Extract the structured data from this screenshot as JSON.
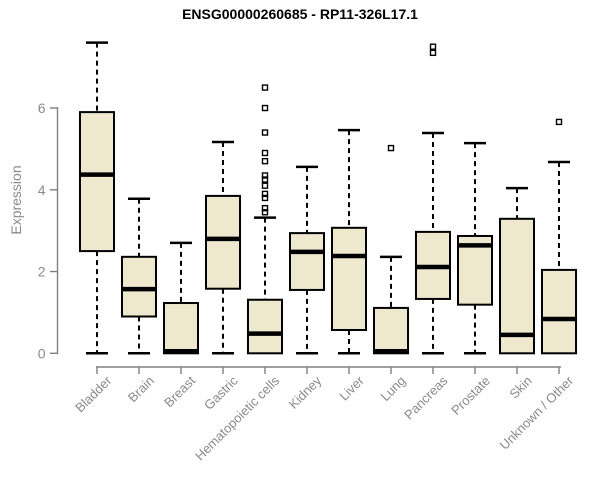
{
  "title": "ENSG00000260685 - RP11-326L17.1",
  "y_axis": {
    "label": "Expression"
  },
  "colors": {
    "box_fill": "#EDE8CE",
    "box_border": "#000000",
    "median": "#000000",
    "whisker": "#000000",
    "axis": "#808080",
    "tick_label": "#8A8A8A",
    "title": "#000000",
    "background": "#FFFFFF"
  },
  "chart_data": {
    "type": "boxplot",
    "title": "ENSG00000260685 - RP11-326L17.1",
    "xlabel": "",
    "ylabel": "Expression",
    "ylim": [
      0,
      7.8
    ],
    "yticks": [
      0,
      2,
      4,
      6
    ],
    "grid": false,
    "legend": "none",
    "categories": [
      "Bladder",
      "Brain",
      "Breast",
      "Gastric",
      "Hematopoietic cells",
      "Kidney",
      "Liver",
      "Lung",
      "Pancreas",
      "Prostate",
      "Skin",
      "Unknown / Other"
    ],
    "series": [
      {
        "name": "Bladder",
        "min": 0,
        "q1": 2.5,
        "median": 4.37,
        "q3": 5.9,
        "max": 7.6,
        "outliers": []
      },
      {
        "name": "Brain",
        "min": 0,
        "q1": 0.9,
        "median": 1.57,
        "q3": 2.36,
        "max": 3.78,
        "outliers": []
      },
      {
        "name": "Breast",
        "min": 0,
        "q1": 0.0,
        "median": 0.05,
        "q3": 1.23,
        "max": 2.7,
        "outliers": []
      },
      {
        "name": "Gastric",
        "min": 0,
        "q1": 1.58,
        "median": 2.8,
        "q3": 3.85,
        "max": 5.17,
        "outliers": []
      },
      {
        "name": "Hematopoietic cells",
        "min": 0,
        "q1": 0.0,
        "median": 0.48,
        "q3": 1.31,
        "max": 3.32,
        "outliers": [
          6.5,
          6.0,
          5.4,
          4.9,
          4.7,
          4.35,
          4.25,
          4.1,
          3.9,
          3.8,
          3.55,
          3.45
        ]
      },
      {
        "name": "Kidney",
        "min": 0,
        "q1": 1.55,
        "median": 2.48,
        "q3": 2.94,
        "max": 4.56,
        "outliers": []
      },
      {
        "name": "Liver",
        "min": 0,
        "q1": 0.57,
        "median": 2.38,
        "q3": 3.07,
        "max": 5.46,
        "outliers": []
      },
      {
        "name": "Lung",
        "min": 0,
        "q1": 0.0,
        "median": 0.05,
        "q3": 1.11,
        "max": 2.36,
        "outliers": [
          5.02
        ]
      },
      {
        "name": "Pancreas",
        "min": 0,
        "q1": 1.33,
        "median": 2.11,
        "q3": 2.97,
        "max": 5.39,
        "outliers": [
          7.35,
          7.5
        ]
      },
      {
        "name": "Prostate",
        "min": 0,
        "q1": 1.19,
        "median": 2.64,
        "q3": 2.87,
        "max": 5.14,
        "outliers": []
      },
      {
        "name": "Skin",
        "min": 0,
        "q1": 0.0,
        "median": 0.45,
        "q3": 3.29,
        "max": 4.04,
        "outliers": []
      },
      {
        "name": "Unknown / Other",
        "min": 0,
        "q1": 0.0,
        "median": 0.84,
        "q3": 2.04,
        "max": 4.68,
        "outliers": [
          5.66
        ]
      }
    ]
  }
}
